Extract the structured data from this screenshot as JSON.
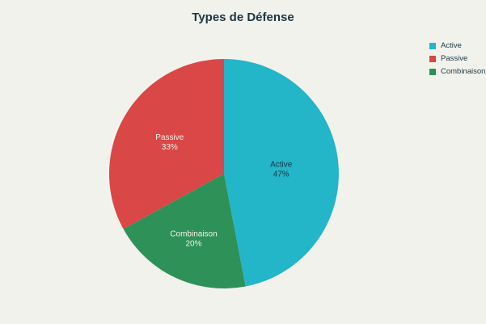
{
  "title": "Types de Défense",
  "colors": {
    "background": "#f2f2ed",
    "title_text": "#1a3642",
    "label_dark": "#1a3642",
    "label_light": "#f5f0e8",
    "active": "#23b5c8",
    "passive": "#d94747",
    "combinaison": "#2e9158"
  },
  "chart_data": {
    "type": "pie",
    "title": "Types de Défense",
    "slices": [
      {
        "label": "Active",
        "percent": 47,
        "color": "#23b5c8",
        "label_style": "dark"
      },
      {
        "label": "Combinaison",
        "percent": 20,
        "color": "#2e9158",
        "label_style": "light"
      },
      {
        "label": "Passive",
        "percent": 33,
        "color": "#d94747",
        "label_style": "light"
      }
    ],
    "legend": [
      {
        "label": "Active",
        "color": "#23b5c8"
      },
      {
        "label": "Passive",
        "color": "#d94747"
      },
      {
        "label": "Combinaison",
        "color": "#2e9158"
      }
    ],
    "legend_position": "top-right",
    "start_angle_deg": 0,
    "direction": "clockwise",
    "slice_label_format": "label + percent"
  }
}
